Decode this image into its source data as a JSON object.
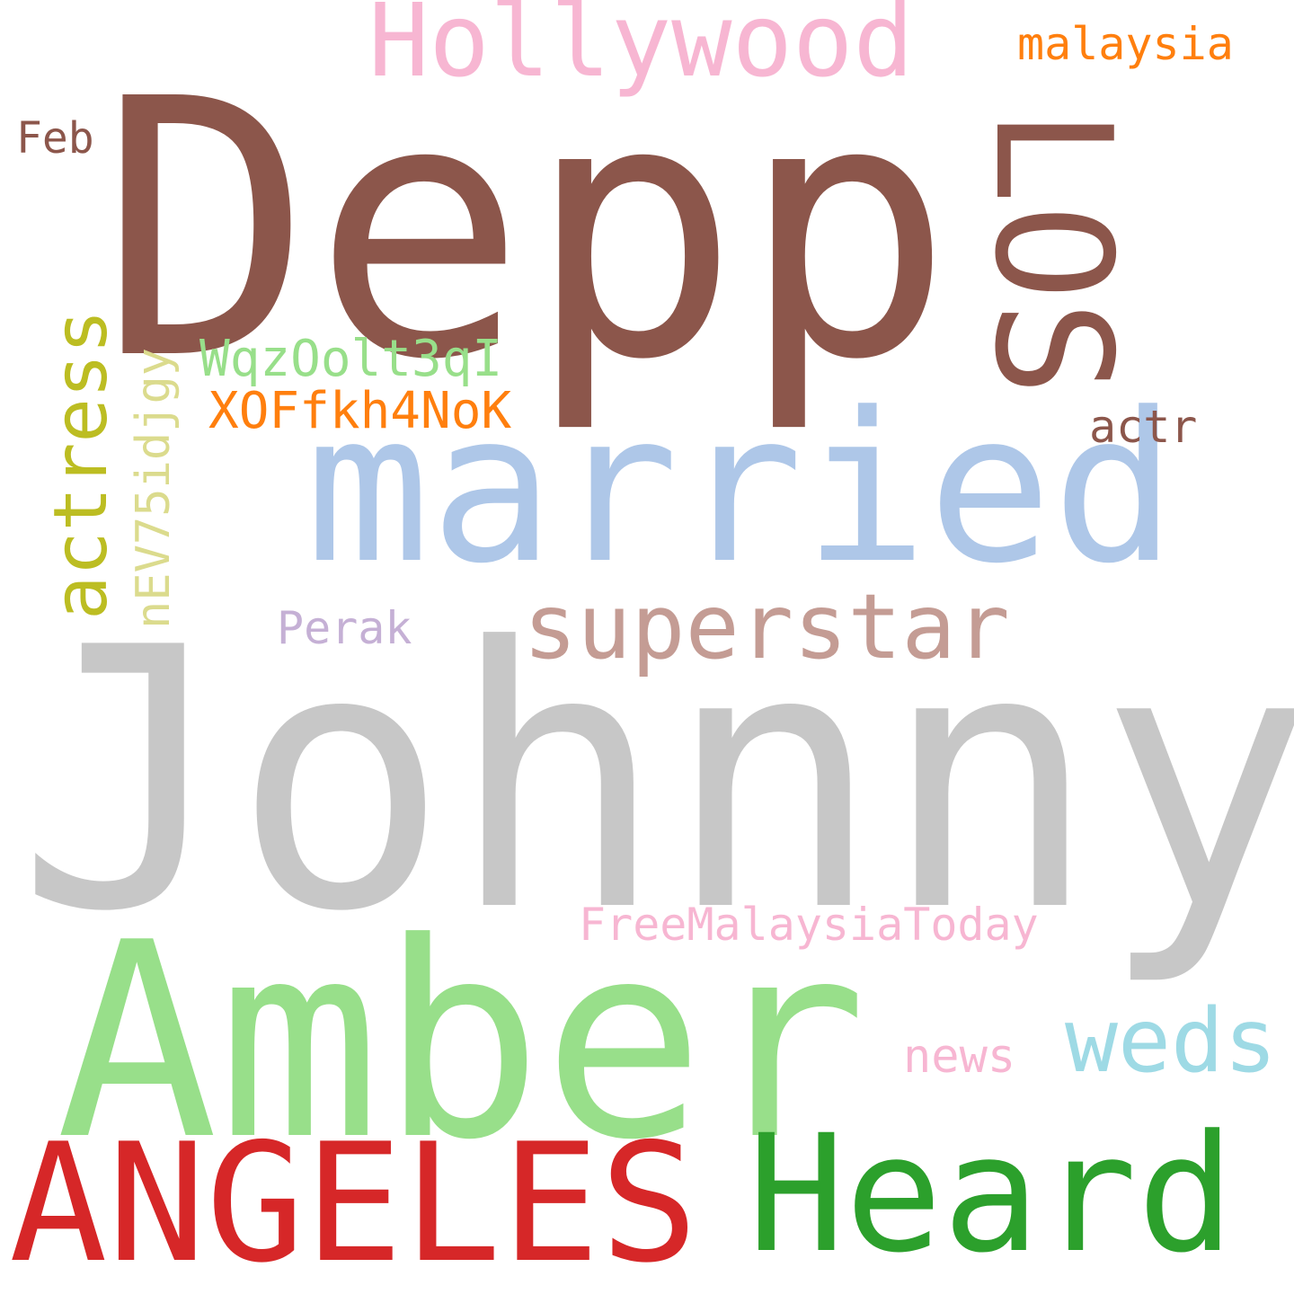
{
  "wordcloud": {
    "background": "#ffffff",
    "words": [
      {
        "id": "depp",
        "text": "Depp",
        "color": "#8c564b",
        "orientation": "horizontal"
      },
      {
        "id": "hollywood",
        "text": "Hollywood",
        "color": "#f7b6d2",
        "orientation": "horizontal"
      },
      {
        "id": "malaysia",
        "text": "malaysia",
        "color": "#ff7f0e",
        "orientation": "horizontal"
      },
      {
        "id": "feb",
        "text": "Feb",
        "color": "#8c564b",
        "orientation": "horizontal"
      },
      {
        "id": "los",
        "text": "LOS",
        "color": "#8c564b",
        "orientation": "vertical-down"
      },
      {
        "id": "married",
        "text": "married",
        "color": "#aec7e8",
        "orientation": "horizontal"
      },
      {
        "id": "actress",
        "text": "actress",
        "color": "#bcbd22",
        "orientation": "vertical-up"
      },
      {
        "id": "nev",
        "text": "nEV75idjgy",
        "color": "#dbdb8d",
        "orientation": "vertical-up"
      },
      {
        "id": "wqz",
        "text": "WqzOolt3qI",
        "color": "#98df8a",
        "orientation": "horizontal"
      },
      {
        "id": "xof",
        "text": "XOFfkh4NoK",
        "color": "#ff7f0e",
        "orientation": "horizontal"
      },
      {
        "id": "actr",
        "text": "actr",
        "color": "#8c564b",
        "orientation": "horizontal"
      },
      {
        "id": "perak",
        "text": "Perak",
        "color": "#c5b0d5",
        "orientation": "horizontal"
      },
      {
        "id": "superstar",
        "text": "superstar",
        "color": "#c49c94",
        "orientation": "horizontal"
      },
      {
        "id": "johnny",
        "text": "Johnny",
        "color": "#c7c7c7",
        "orientation": "horizontal"
      },
      {
        "id": "fmt",
        "text": "FreeMalaysiaToday",
        "color": "#f7b6d2",
        "orientation": "horizontal"
      },
      {
        "id": "amber",
        "text": "Amber",
        "color": "#98df8a",
        "orientation": "horizontal"
      },
      {
        "id": "weds",
        "text": "weds",
        "color": "#9edae5",
        "orientation": "horizontal"
      },
      {
        "id": "news",
        "text": "news",
        "color": "#f7b6d2",
        "orientation": "horizontal"
      },
      {
        "id": "angeles",
        "text": "ANGELES",
        "color": "#d62728",
        "orientation": "horizontal"
      },
      {
        "id": "heard",
        "text": "Heard",
        "color": "#2ca02c",
        "orientation": "horizontal"
      }
    ]
  }
}
